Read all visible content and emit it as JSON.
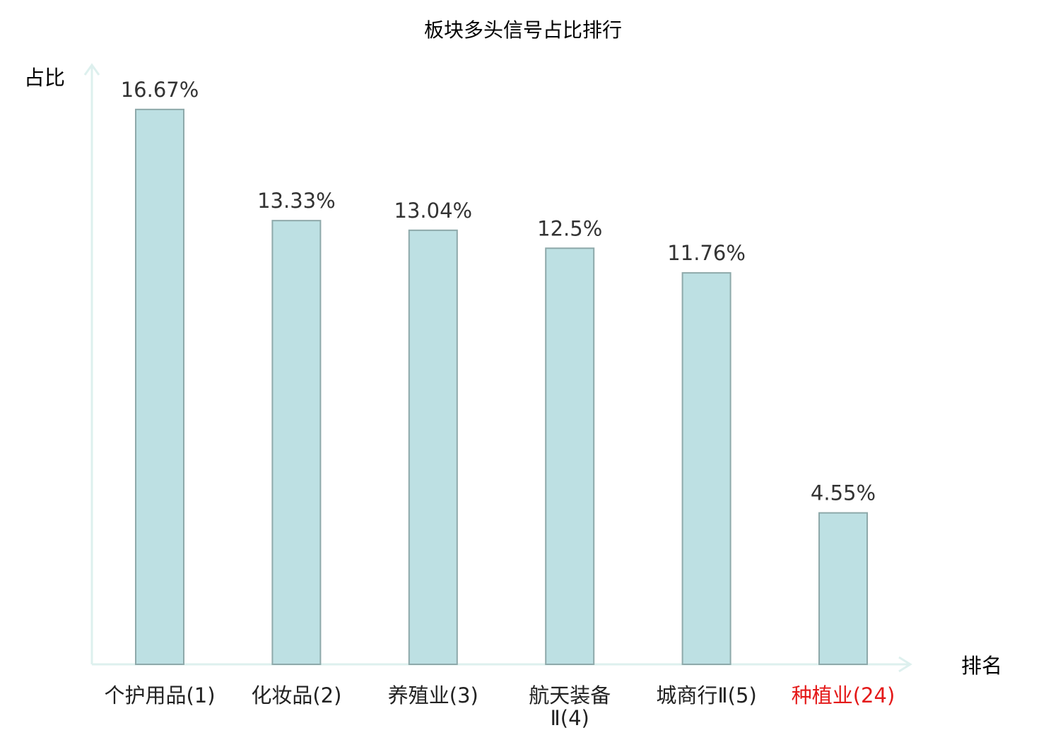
{
  "chart_data": {
    "type": "bar",
    "title": "板块多头信号占比排行",
    "ylabel": "占比",
    "xlabel": "排名",
    "categories": [
      {
        "name": "个护用品",
        "rank": "(1)",
        "highlight": false
      },
      {
        "name": "化妆品",
        "rank": "(2)",
        "highlight": false
      },
      {
        "name": "养殖业",
        "rank": "(3)",
        "highlight": false
      },
      {
        "name": "航天装备",
        "rank": "Ⅱ(4)",
        "highlight": false
      },
      {
        "name": "城商行",
        "rank": "Ⅱ(5)",
        "highlight": false
      },
      {
        "name": "种植业",
        "rank": "(24)",
        "highlight": true
      }
    ],
    "values": [
      16.67,
      13.33,
      13.04,
      12.5,
      11.76,
      4.55
    ],
    "value_labels": [
      "16.67%",
      "13.33%",
      "13.04%",
      "12.5%",
      "11.76%",
      "4.55%"
    ],
    "ylim": [
      0,
      17.5
    ],
    "grid": false,
    "legend": "none"
  },
  "colors": {
    "bar_fill": "#bde0e3",
    "bar_stroke": "#8ea9aa",
    "axis": "#ddf0ee",
    "highlight": "#e41a1a",
    "text": "#222222"
  }
}
